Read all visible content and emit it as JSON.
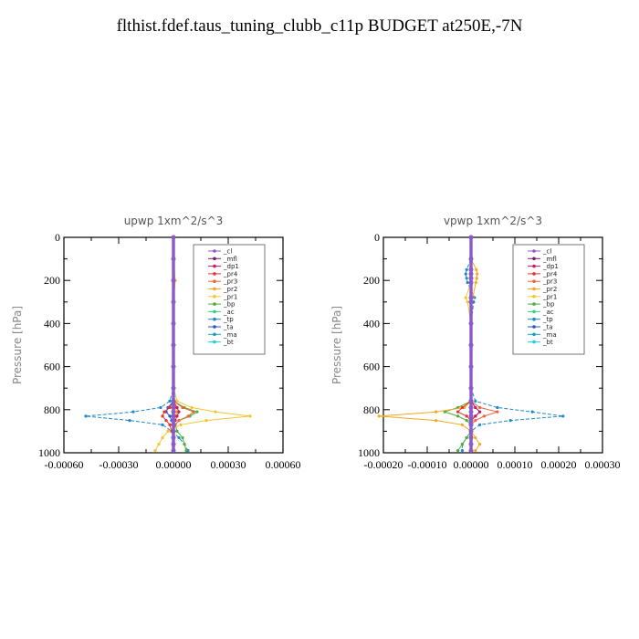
{
  "title": "flthist.fdef.taus_tuning_clubb_c11p  BUDGET at250E,-7N",
  "legend_labels": [
    "_cl",
    "_mfl",
    "_dp1",
    "_pr4",
    "_pr3",
    "_pr2",
    "_pr1",
    "_bp",
    "_ac",
    "_tp",
    "_ta",
    "_ma",
    "_bt"
  ],
  "legend_colors": [
    "#8a5cc8",
    "#7a1c6e",
    "#cc1b5a",
    "#e3342f",
    "#f0623c",
    "#f5a623",
    "#f4c430",
    "#4caf3a",
    "#33d17a",
    "#1e88c8",
    "#2a55c8",
    "#16a0c0",
    "#20d0e0"
  ],
  "chart_data": [
    {
      "type": "line",
      "title": "upwp   1xm^2/s^3",
      "xlabel": "",
      "ylabel": "Pressure [hPa]",
      "xlim": [
        -0.0006,
        0.0006
      ],
      "ylim": [
        1000,
        0
      ],
      "x_ticks": [
        "-0.00060",
        "-0.00030",
        "0.00000",
        "0.00030",
        "0.00060"
      ],
      "y_ticks": [
        "0",
        "200",
        "400",
        "600",
        "800",
        "1000"
      ],
      "legend_position": "top-right",
      "pressure_levels": [
        0,
        100,
        200,
        300,
        400,
        500,
        600,
        700,
        760,
        790,
        810,
        830,
        850,
        870,
        900,
        930,
        960,
        990
      ],
      "series": [
        {
          "name": "_cl",
          "values": [
            0,
            0,
            0,
            0,
            0,
            0,
            0,
            0,
            0,
            0,
            0,
            0,
            0,
            0,
            0,
            0,
            0,
            0
          ]
        },
        {
          "name": "_mfl",
          "values": [
            0,
            0,
            0,
            0,
            0,
            0,
            0,
            0,
            0,
            0,
            0,
            0,
            0,
            0,
            0,
            0,
            0,
            0
          ]
        },
        {
          "name": "_dp1",
          "values": [
            0,
            0,
            0,
            0,
            0,
            0,
            0,
            0,
            0,
            2e-05,
            3e-05,
            2e-05,
            1e-05,
            0,
            0,
            0,
            0,
            0
          ]
        },
        {
          "name": "_pr4",
          "values": [
            0,
            0,
            0,
            0,
            0,
            0,
            0,
            0,
            0,
            -2e-05,
            -5e-05,
            -6e-05,
            -4e-05,
            -2e-05,
            -1e-05,
            0,
            0,
            0
          ]
        },
        {
          "name": "_pr3",
          "values": [
            0,
            0,
            0,
            0,
            0,
            0,
            0,
            0,
            0,
            5e-05,
            0.00011,
            8e-05,
            3e-05,
            1e-05,
            0,
            0,
            0,
            0
          ]
        },
        {
          "name": "_pr2",
          "values": [
            0,
            0,
            0,
            0,
            0,
            0,
            0,
            0,
            0,
            1e-05,
            2e-05,
            1e-05,
            0,
            0,
            0,
            0,
            0,
            0
          ]
        },
        {
          "name": "_pr1",
          "values": [
            0,
            0,
            1e-05,
            0,
            0,
            0,
            0,
            0,
            2e-05,
            0.0001,
            0.00023,
            0.00042,
            0.00018,
            4e-05,
            -3e-05,
            -6e-05,
            -8e-05,
            -0.0001
          ]
        },
        {
          "name": "_bp",
          "values": [
            0,
            0,
            0,
            0,
            0,
            0,
            0,
            0,
            0,
            6e-05,
            0.00013,
            9e-05,
            3e-05,
            1e-05,
            2e-05,
            5e-05,
            6e-05,
            7e-05
          ]
        },
        {
          "name": "_ac",
          "values": [
            0,
            0,
            0,
            0,
            0,
            0,
            0,
            0,
            0,
            1e-05,
            2e-05,
            1e-05,
            0,
            0,
            0,
            0,
            0,
            0
          ]
        },
        {
          "name": "_tp",
          "values": [
            0,
            0,
            0,
            0,
            0,
            0,
            0,
            0,
            -2e-05,
            -7e-05,
            -0.00022,
            -0.00048,
            -0.00024,
            -6e-05,
            -1e-05,
            3e-05,
            6e-05,
            8e-05
          ]
        },
        {
          "name": "_ta",
          "values": [
            0,
            0,
            0,
            0,
            0,
            0,
            0,
            0,
            0,
            -3e-05,
            -4e-05,
            -2e-05,
            -1e-05,
            0,
            0,
            0,
            0,
            0
          ]
        },
        {
          "name": "_ma",
          "values": [
            0,
            0,
            0,
            0,
            0,
            0,
            0,
            0,
            0,
            0,
            0,
            0,
            0,
            0,
            0,
            0,
            0,
            0
          ]
        },
        {
          "name": "_bt",
          "values": [
            0,
            0,
            0,
            0,
            0,
            0,
            0,
            0,
            0,
            0,
            0,
            0,
            0,
            0,
            0,
            0,
            0,
            0
          ]
        }
      ]
    },
    {
      "type": "line",
      "title": "vpwp   1xm^2/s^3",
      "xlabel": "",
      "ylabel": "Pressure [hPa]",
      "xlim": [
        -0.0002,
        0.0003
      ],
      "ylim": [
        1000,
        0
      ],
      "x_ticks": [
        "-0.00020",
        "-0.00010",
        "0.00000",
        "0.00010",
        "0.00020",
        "0.00030"
      ],
      "y_ticks": [
        "0",
        "200",
        "400",
        "600",
        "800",
        "1000"
      ],
      "legend_position": "top-right",
      "pressure_levels": [
        0,
        100,
        150,
        170,
        190,
        210,
        280,
        300,
        400,
        500,
        600,
        700,
        760,
        790,
        810,
        830,
        850,
        870,
        900,
        930,
        960,
        990
      ],
      "series": [
        {
          "name": "_cl",
          "values": [
            0,
            0,
            0,
            0,
            0,
            0,
            0,
            0,
            0,
            0,
            0,
            0,
            0,
            0,
            0,
            0,
            0,
            0,
            0,
            0,
            0,
            0
          ]
        },
        {
          "name": "_mfl",
          "values": [
            0,
            0,
            0,
            0,
            0,
            0,
            0,
            0,
            0,
            0,
            0,
            0,
            0,
            0,
            0,
            0,
            0,
            0,
            0,
            0,
            0,
            0
          ]
        },
        {
          "name": "_dp1",
          "values": [
            0,
            0,
            0,
            0,
            0,
            0,
            0,
            0,
            0,
            0,
            0,
            0,
            0,
            1e-05,
            2e-05,
            1e-05,
            0,
            0,
            0,
            0,
            0,
            0
          ]
        },
        {
          "name": "_pr4",
          "values": [
            0,
            0,
            0,
            0,
            0,
            0,
            0,
            0,
            0,
            0,
            0,
            0,
            0,
            -2e-05,
            -3e-05,
            -1e-05,
            0,
            0,
            0,
            0,
            0,
            0
          ]
        },
        {
          "name": "_pr3",
          "values": [
            0,
            0,
            0,
            0,
            0,
            0,
            0,
            0,
            0,
            0,
            0,
            0,
            0,
            2e-05,
            6e-05,
            3e-05,
            1e-05,
            0,
            0,
            0,
            0,
            0
          ]
        },
        {
          "name": "_pr2",
          "values": [
            0,
            0,
            1.2e-05,
            1.4e-05,
            1.3e-05,
            1.1e-05,
            4e-06,
            0,
            0,
            0,
            0,
            0,
            0,
            -1.5e-05,
            -8e-05,
            -0.00021,
            -8e-05,
            -2e-05,
            0,
            1e-05,
            2e-05,
            1e-05
          ]
        },
        {
          "name": "_pr1",
          "values": [
            0,
            0,
            0,
            0,
            0,
            0,
            -1.2e-05,
            -8e-06,
            0,
            0,
            0,
            0,
            0,
            0,
            0,
            0,
            0,
            0,
            0,
            0,
            0,
            0
          ]
        },
        {
          "name": "_bp",
          "values": [
            0,
            0,
            0,
            0,
            0,
            0,
            0,
            0,
            0,
            0,
            0,
            0,
            0,
            -3e-05,
            -6e-05,
            -3e-05,
            -1e-05,
            0,
            0,
            -1e-05,
            -2e-05,
            -3e-05
          ]
        },
        {
          "name": "_ac",
          "values": [
            0,
            0,
            0,
            0,
            0,
            0,
            0,
            0,
            0,
            0,
            0,
            0,
            0,
            0,
            0,
            0,
            0,
            0,
            0,
            0,
            0,
            0
          ]
        },
        {
          "name": "_tp",
          "values": [
            0,
            0,
            -1e-05,
            -1.2e-05,
            -1e-05,
            -8e-06,
            8e-06,
            6e-06,
            0,
            0,
            0,
            0,
            1e-05,
            6e-05,
            0.00014,
            0.00021,
            9e-05,
            2e-05,
            0,
            -1e-05,
            -2e-05,
            -2e-05
          ]
        },
        {
          "name": "_ta",
          "values": [
            0,
            0,
            0,
            0,
            0,
            0,
            0,
            0,
            0,
            0,
            0,
            0,
            0,
            1e-05,
            2e-05,
            1e-05,
            0,
            0,
            0,
            0,
            0,
            0
          ]
        },
        {
          "name": "_ma",
          "values": [
            0,
            0,
            0,
            0,
            0,
            0,
            0,
            0,
            0,
            0,
            0,
            0,
            0,
            0,
            0,
            0,
            0,
            0,
            0,
            0,
            0,
            0
          ]
        },
        {
          "name": "_bt",
          "values": [
            0,
            0,
            0,
            0,
            0,
            0,
            0,
            0,
            0,
            0,
            0,
            0,
            0,
            0,
            0,
            0,
            0,
            0,
            0,
            0,
            0,
            0
          ]
        }
      ]
    }
  ]
}
